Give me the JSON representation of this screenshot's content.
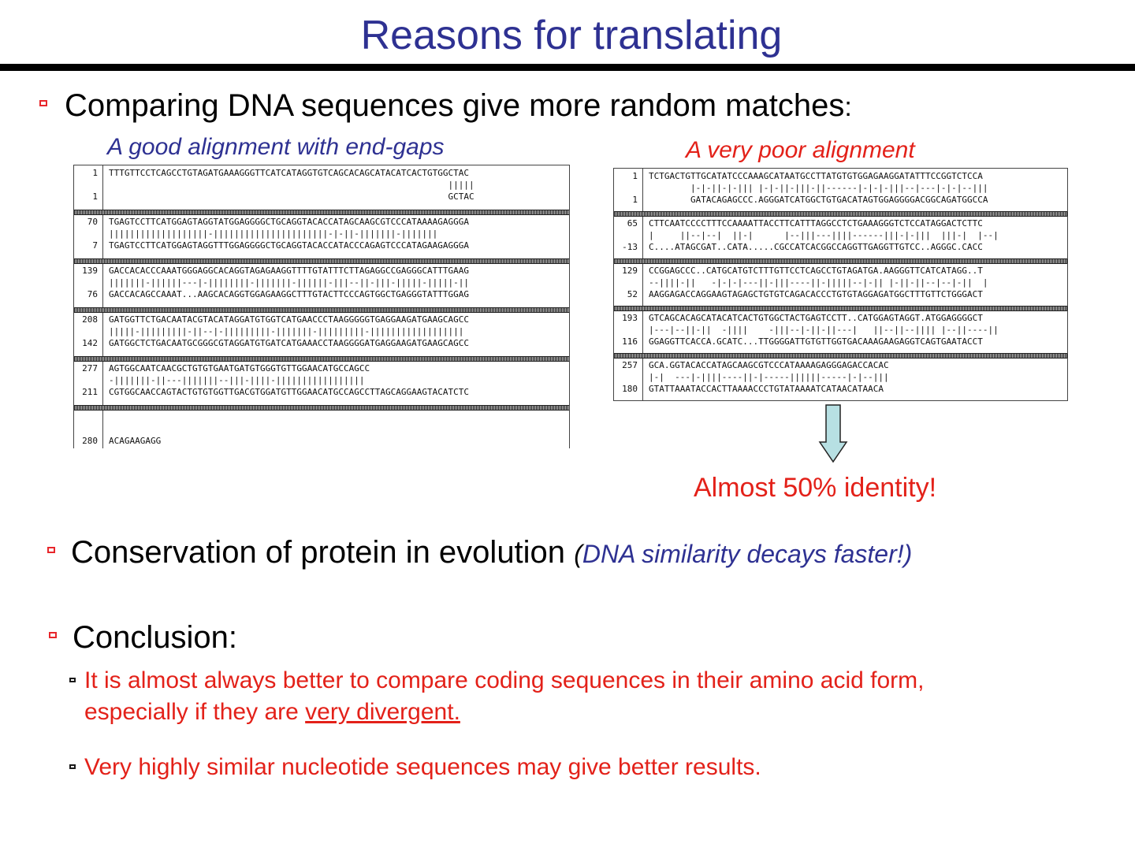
{
  "slide": {
    "title": "Reasons for translating"
  },
  "point1": {
    "text": "Comparing DNA sequences give more random matches",
    "colon": ":"
  },
  "good_alignment": {
    "caption": "A good alignment with end-gaps",
    "blocks": [
      {
        "rows": [
          {
            "n": "1",
            "s": "TTTGTTCCTCAGCCTGTAGATGAAAGGGTTCATCATAGGTGTCAGCACAGCATACATCACTGTGGCTAC"
          },
          {
            "n": "",
            "s": "                                                                 |||||"
          },
          {
            "n": "1",
            "s": "                                                                 GCTAC"
          }
        ]
      },
      {
        "rows": [
          {
            "n": "70",
            "s": "TGAGTCCTTCATGGAGTAGGTATGGAGGGGCTGCAGGTACACCATAGCAAGCGTCCCATAAAAGAGGGA"
          },
          {
            "n": "",
            "s": "|||||||||||||||||||-||||||||||||||||||||||-|-||-|||||||-|||||||"
          },
          {
            "n": "7",
            "s": "TGAGTCCTTCATGGAGTAGGTTTGGAGGGGCTGCAGGTACACCATACCCAGAGTCCCATAGAAGAGGGA"
          }
        ]
      },
      {
        "rows": [
          {
            "n": "139",
            "s": "GACCACACCCAAATGGGAGGCACAGGTAGAGAAGGTTTTGTATTTCTTAGAGGCCGAGGGCATTTGAAG"
          },
          {
            "n": "",
            "s": "|||||||-||||||---|-||||||||-|||||||-||||||-|||--||-|||-|||||-|||||-||"
          },
          {
            "n": "76",
            "s": "GACCACAGCCAAAT...AAGCACAGGTGGAGAAGGCTTTGTACTTCCCAGTGGCTGAGGGTATTTGGAG"
          }
        ]
      },
      {
        "rows": [
          {
            "n": "208",
            "s": "GATGGTTCTGACAATACGTACATAGGATGTGGTCATGAACCCTAAGGGGGTGAGGAAGATGAAGCAGCC"
          },
          {
            "n": "",
            "s": "|||||-|||||||||-||--|-|||||||||-|||||||-|||||||||-||||||||||||||||||"
          },
          {
            "n": "142",
            "s": "GATGGCTCTGACAATGCGGGCGTAGGATGTGATCATGAAACCTAAGGGGATGAGGAAGATGAAGCAGCC"
          }
        ]
      },
      {
        "rows": [
          {
            "n": "277",
            "s": "AGTGGCAATCAACGCTGTGTGAATGATGTGGGTGTTGGAACATGCCAGCC"
          },
          {
            "n": "",
            "s": "-|||||||-||---|||||||--|||-||||-|||||||||||||||||"
          },
          {
            "n": "211",
            "s": "CGTGGCAACCAGTACTGTGTGGTTGACGTGGATGTTGGAACATGCCAGCCTTAGCAGGAAGTACATCTC"
          }
        ]
      },
      {
        "rows": [
          {
            "n": "",
            "s": ""
          },
          {
            "n": "",
            "s": ""
          },
          {
            "n": "280",
            "s": "ACAGAAGAGG"
          }
        ]
      }
    ]
  },
  "poor_alignment": {
    "caption": "A very poor alignment",
    "blocks": [
      {
        "rows": [
          {
            "n": "1",
            "s": "TCTGACTGTTGCATATCCCAAAGCATAATGCCTTATGTGTGGAGAAGGATATTTCCGGTCTCCA"
          },
          {
            "n": "",
            "s": "        |-|-||-|-||| |-|-||-|||-||------|-|-|-|||--|---|-|-|--|||"
          },
          {
            "n": "1",
            "s": "        GATACAGAGCCC.AGGGATCATGGCTGTGACATAGTGGAGGGGACGGCAGATGGCCA"
          }
        ]
      },
      {
        "rows": [
          {
            "n": "65",
            "s": "CTTCAATCCCCTTTCCAAAATTACCTTCATTTAGGCCTCTGAAAGGGTCTCCATAGGACTCTTC"
          },
          {
            "n": "",
            "s": "|     ||--|--|  ||-|      |--|||---||||------|||-|-|||  |||-|  |--|"
          },
          {
            "n": "-13",
            "s": "C....ATAGCGAT..CATA.....CGCCATCACGGCCAGGTTGAGGTTGTCC..AGGGC.CACC"
          }
        ]
      },
      {
        "rows": [
          {
            "n": "129",
            "s": "CCGGAGCCC..CATGCATGTCTTTGTTCCTCAGCCTGTAGATGA.AAGGGTTCATCATAGG..T"
          },
          {
            "n": "",
            "s": "--||||-||   -|-|-|---||-|||----||-|||||--|-|| |-||-||--|--|-||  |"
          },
          {
            "n": "52",
            "s": "AAGGAGACCAGGAAGTAGAGCTGTGTCAGACACCCTGTGTAGGAGATGGCTTTGTTCTGGGACT"
          }
        ]
      },
      {
        "rows": [
          {
            "n": "193",
            "s": "GTCAGCACAGCATACATCACTGTGGCTACTGAGTCCTT..CATGGAGTAGGT.ATGGAGGGGCT"
          },
          {
            "n": "",
            "s": "|---|--||-||  -||||    -|||--|-||-||---|   ||--||--|||| |--||----||"
          },
          {
            "n": "116",
            "s": "GGAGGTTCACCA.GCATC...TTGGGGATTGTGTTGGTGACAAAGAAGAGGTCAGTGAATACCT"
          }
        ]
      },
      {
        "rows": [
          {
            "n": "257",
            "s": "GCA.GGTACACCATAGCAAGCGTCCCATAAAAGAGGGAGACCACAC"
          },
          {
            "n": "",
            "s": "|-|  ---|-||||----||-|-----||||||-----|-|--|||"
          },
          {
            "n": "180",
            "s": "GTATTAAATACCACTTAAAACCCTGTATAAAATCATAACATAACA"
          }
        ]
      }
    ]
  },
  "result": {
    "text": "Almost 50% identity!"
  },
  "point2": {
    "text": "Conservation of protein in evolution",
    "aside_open": "(",
    "aside": "DNA similarity decays faster!)"
  },
  "point3": {
    "text": "Conclusion:",
    "items": [
      {
        "text_line1": "It is almost always better to compare coding sequences in their amino acid form,",
        "text_line2_pre": "especially if they are ",
        "text_line2_underlined": "very divergent."
      },
      {
        "text": "Very highly similar nucleotide sequences may give better results."
      }
    ]
  },
  "colors": {
    "title": "#2e3192",
    "accent_red": "#e32119",
    "caption_blue": "#2e3192",
    "arrow_fill": "#b7e0e3"
  }
}
